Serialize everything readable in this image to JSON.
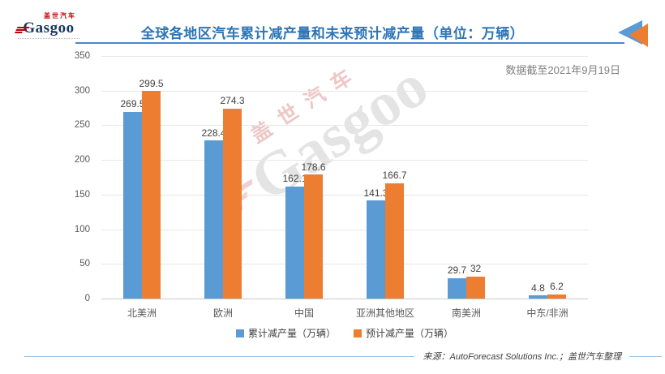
{
  "header": {
    "title": "全球各地区汽车累计减产量和未来预计减产量（单位：万辆）",
    "subtitle": "数据截至2021年9月19日",
    "logo": {
      "cn": "盖世汽车",
      "en": "Gasgoo"
    }
  },
  "watermark": {
    "cn": "盖世汽车",
    "en": "Gasgoo"
  },
  "footer": {
    "source": "来源：AutoForecast Solutions Inc.；盖世汽车整理"
  },
  "colors": {
    "bar_blue": "#5B9BD5",
    "bar_orange": "#ED7D31",
    "title_blue": "#2E75B6",
    "gridline": "#E7E7E7",
    "footer_line": "#9DC3E6"
  },
  "chart_data": {
    "type": "bar",
    "title": "全球各地区汽车累计减产量和未来预计减产量（单位：万辆）",
    "categories": [
      "北美洲",
      "欧洲",
      "中国",
      "亚洲其他地区",
      "南美洲",
      "中东/非洲"
    ],
    "series": [
      {
        "name": "累计减产量（万辆）",
        "color": "#5B9BD5",
        "values": [
          269.5,
          228.4,
          162.1,
          141.3,
          29.7,
          4.8
        ]
      },
      {
        "name": "预计减产量（万辆）",
        "color": "#ED7D31",
        "values": [
          299.5,
          274.3,
          178.6,
          166.7,
          32,
          6.2
        ]
      }
    ],
    "xlabel": "",
    "ylabel": "",
    "ylim": [
      0,
      350
    ],
    "yticks": [
      0,
      50,
      100,
      150,
      200,
      250,
      300,
      350
    ],
    "grid": true,
    "legend_position": "bottom",
    "data_labels": true
  }
}
